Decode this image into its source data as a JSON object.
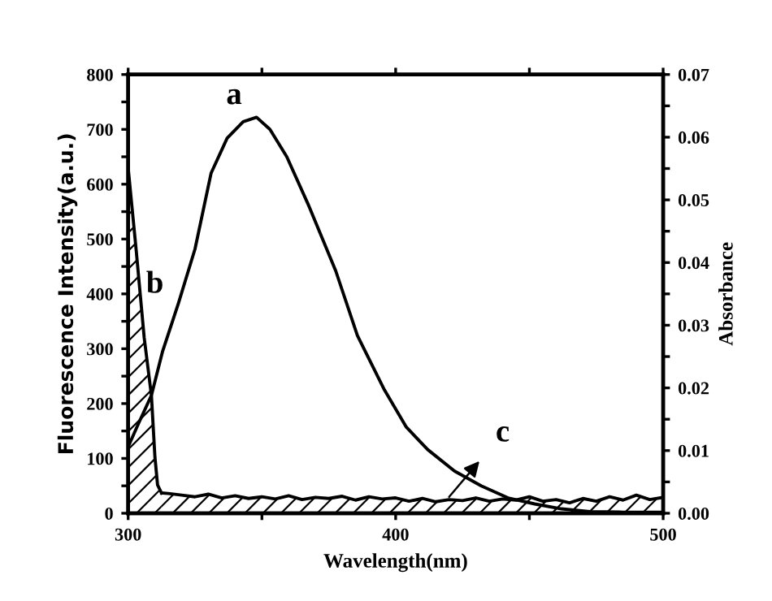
{
  "chart_data": {
    "type": "line",
    "xlabel": "Wavelength(nm)",
    "ylabel": "Fluorescence Intensity(a.u.)",
    "y2label": "Absorbance",
    "xlim": [
      300,
      500
    ],
    "ylim": [
      0,
      800
    ],
    "y2lim": [
      0,
      0.07
    ],
    "xticks": [
      300,
      {
        "value": 350,
        "label": null
      },
      400,
      {
        "value": 450,
        "label": null
      },
      500
    ],
    "yticks": [
      0,
      {
        "value": 50,
        "label": null
      },
      100,
      {
        "value": 150,
        "label": null
      },
      200,
      {
        "value": 250,
        "label": null
      },
      300,
      {
        "value": 350,
        "label": null
      },
      400,
      {
        "value": 450,
        "label": null
      },
      500,
      {
        "value": 550,
        "label": null
      },
      600,
      {
        "value": 650,
        "label": null
      },
      700,
      {
        "value": 750,
        "label": null
      },
      800
    ],
    "y2ticks": [
      {
        "value": 0,
        "label": "0.00"
      },
      {
        "value": 0.005,
        "label": null
      },
      {
        "value": 0.01,
        "label": "0.01"
      },
      {
        "value": 0.015,
        "label": null
      },
      {
        "value": 0.02,
        "label": "0.02"
      },
      {
        "value": 0.025,
        "label": null
      },
      {
        "value": 0.03,
        "label": "0.03"
      },
      {
        "value": 0.035,
        "label": null
      },
      {
        "value": 0.04,
        "label": "0.04"
      },
      {
        "value": 0.045,
        "label": null
      },
      {
        "value": 0.05,
        "label": "0.05"
      },
      {
        "value": 0.055,
        "label": null
      },
      {
        "value": 0.06,
        "label": "0.06"
      },
      {
        "value": 0.065,
        "label": null
      },
      {
        "value": 0.07,
        "label": "0.07"
      }
    ],
    "series": [
      {
        "color": "#000000",
        "x": [
          300,
          304,
          308.7,
          312.8,
          318.8,
          325,
          331,
          337,
          343,
          348,
          353,
          359.3,
          367.5,
          377.6,
          385.7,
          395.8,
          404,
          412,
          422,
          432,
          442,
          452,
          462,
          472.6,
          485,
          500
        ],
        "values": [
          121,
          165,
          215,
          294,
          383,
          482,
          620,
          684,
          714,
          722,
          700,
          650,
          561,
          442,
          324,
          225,
          157,
          116,
          77,
          50,
          28,
          17,
          8,
          3,
          2,
          2
        ]
      },
      {
        "type": "area",
        "axis": "y2",
        "color": "#000000",
        "x": [
          300,
          303,
          306,
          308.7,
          310,
          311,
          312.5
        ],
        "values": [
          0.0551,
          0.042,
          0.028,
          0.0188,
          0.009,
          0.0045,
          0.0032
        ]
      },
      {
        "type": "area",
        "color": "#000000",
        "x": [
          312.5,
          315,
          320,
          325,
          330,
          335,
          340,
          345,
          350,
          355,
          360,
          365,
          370,
          375,
          380,
          385,
          390,
          395,
          400,
          405,
          410,
          415,
          420,
          425,
          430,
          435,
          440,
          445,
          450,
          455,
          460,
          465,
          470,
          475,
          480,
          485,
          490,
          495,
          500
        ],
        "values": [
          37,
          36,
          33,
          30,
          35,
          28,
          32,
          27,
          30,
          26,
          32,
          25,
          29,
          27,
          31,
          24,
          30,
          26,
          28,
          22,
          27,
          21,
          25,
          23,
          28,
          22,
          26,
          24,
          30,
          22,
          25,
          19,
          27,
          22,
          30,
          24,
          33,
          25,
          29
        ]
      }
    ],
    "annotations": [
      "a",
      "b",
      {
        "text": "c",
        "x": 420,
        "y": 30
      }
    ]
  }
}
